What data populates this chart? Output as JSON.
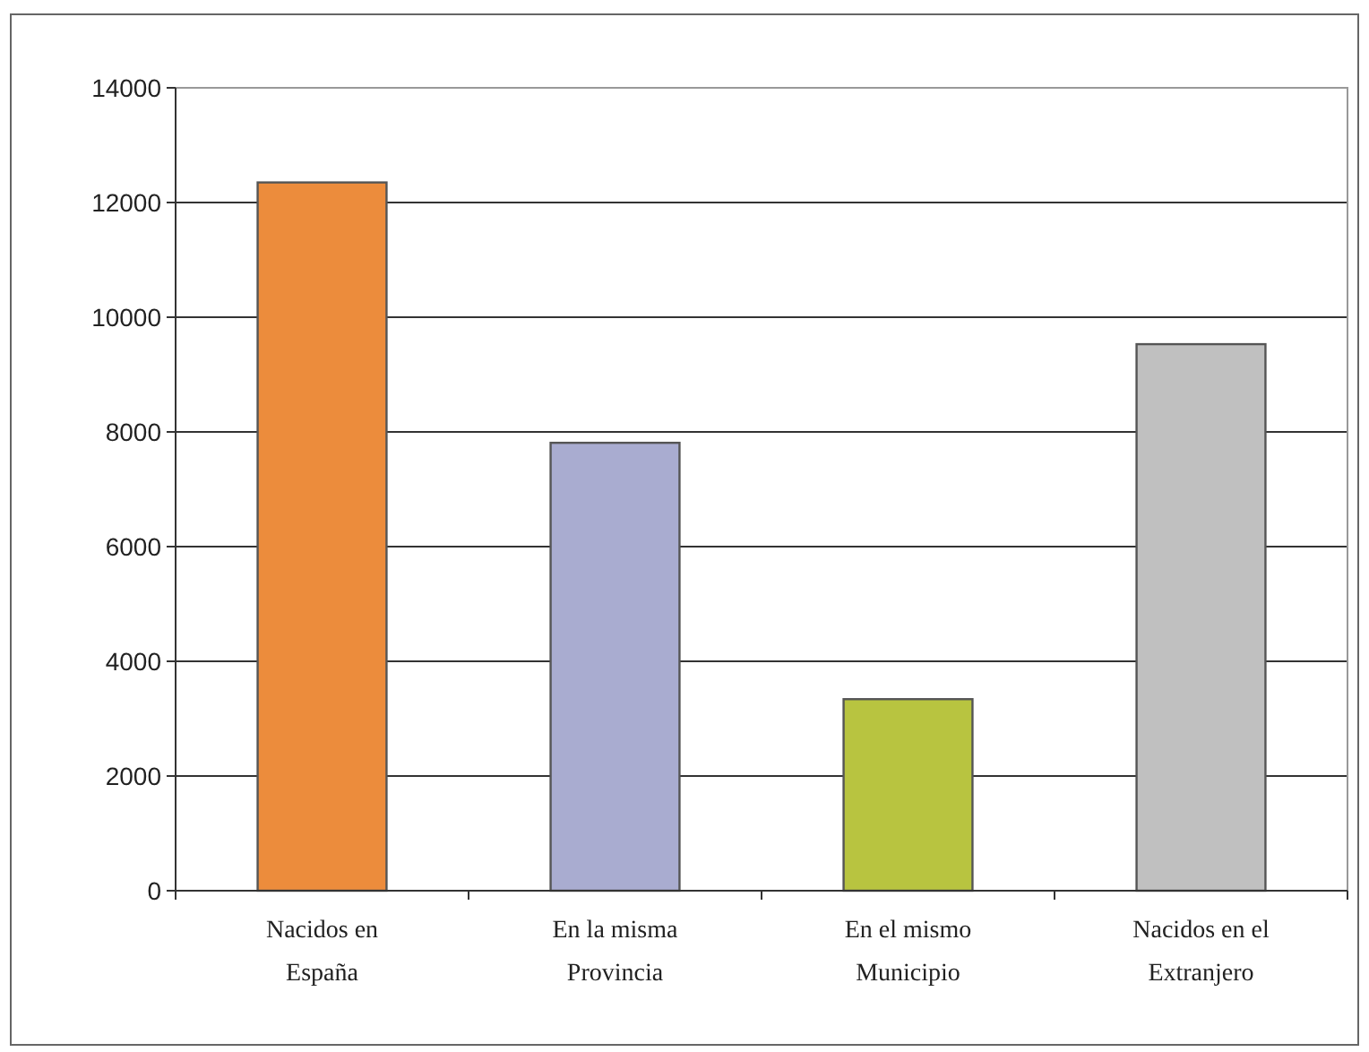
{
  "chart_data": {
    "type": "bar",
    "categories": [
      "Nacidos en España",
      "En la misma Provincia",
      "En el mismo Municipio",
      "Nacidos en el Extranjero"
    ],
    "values": [
      12350,
      7810,
      3340,
      9530
    ],
    "colors": [
      "#ec8c3c",
      "#a9acd0",
      "#b8c440",
      "#c0c0c0"
    ],
    "ylim": [
      0,
      14000
    ],
    "yticks": [
      0,
      2000,
      4000,
      6000,
      8000,
      10000,
      12000,
      14000
    ],
    "grid": "y"
  }
}
